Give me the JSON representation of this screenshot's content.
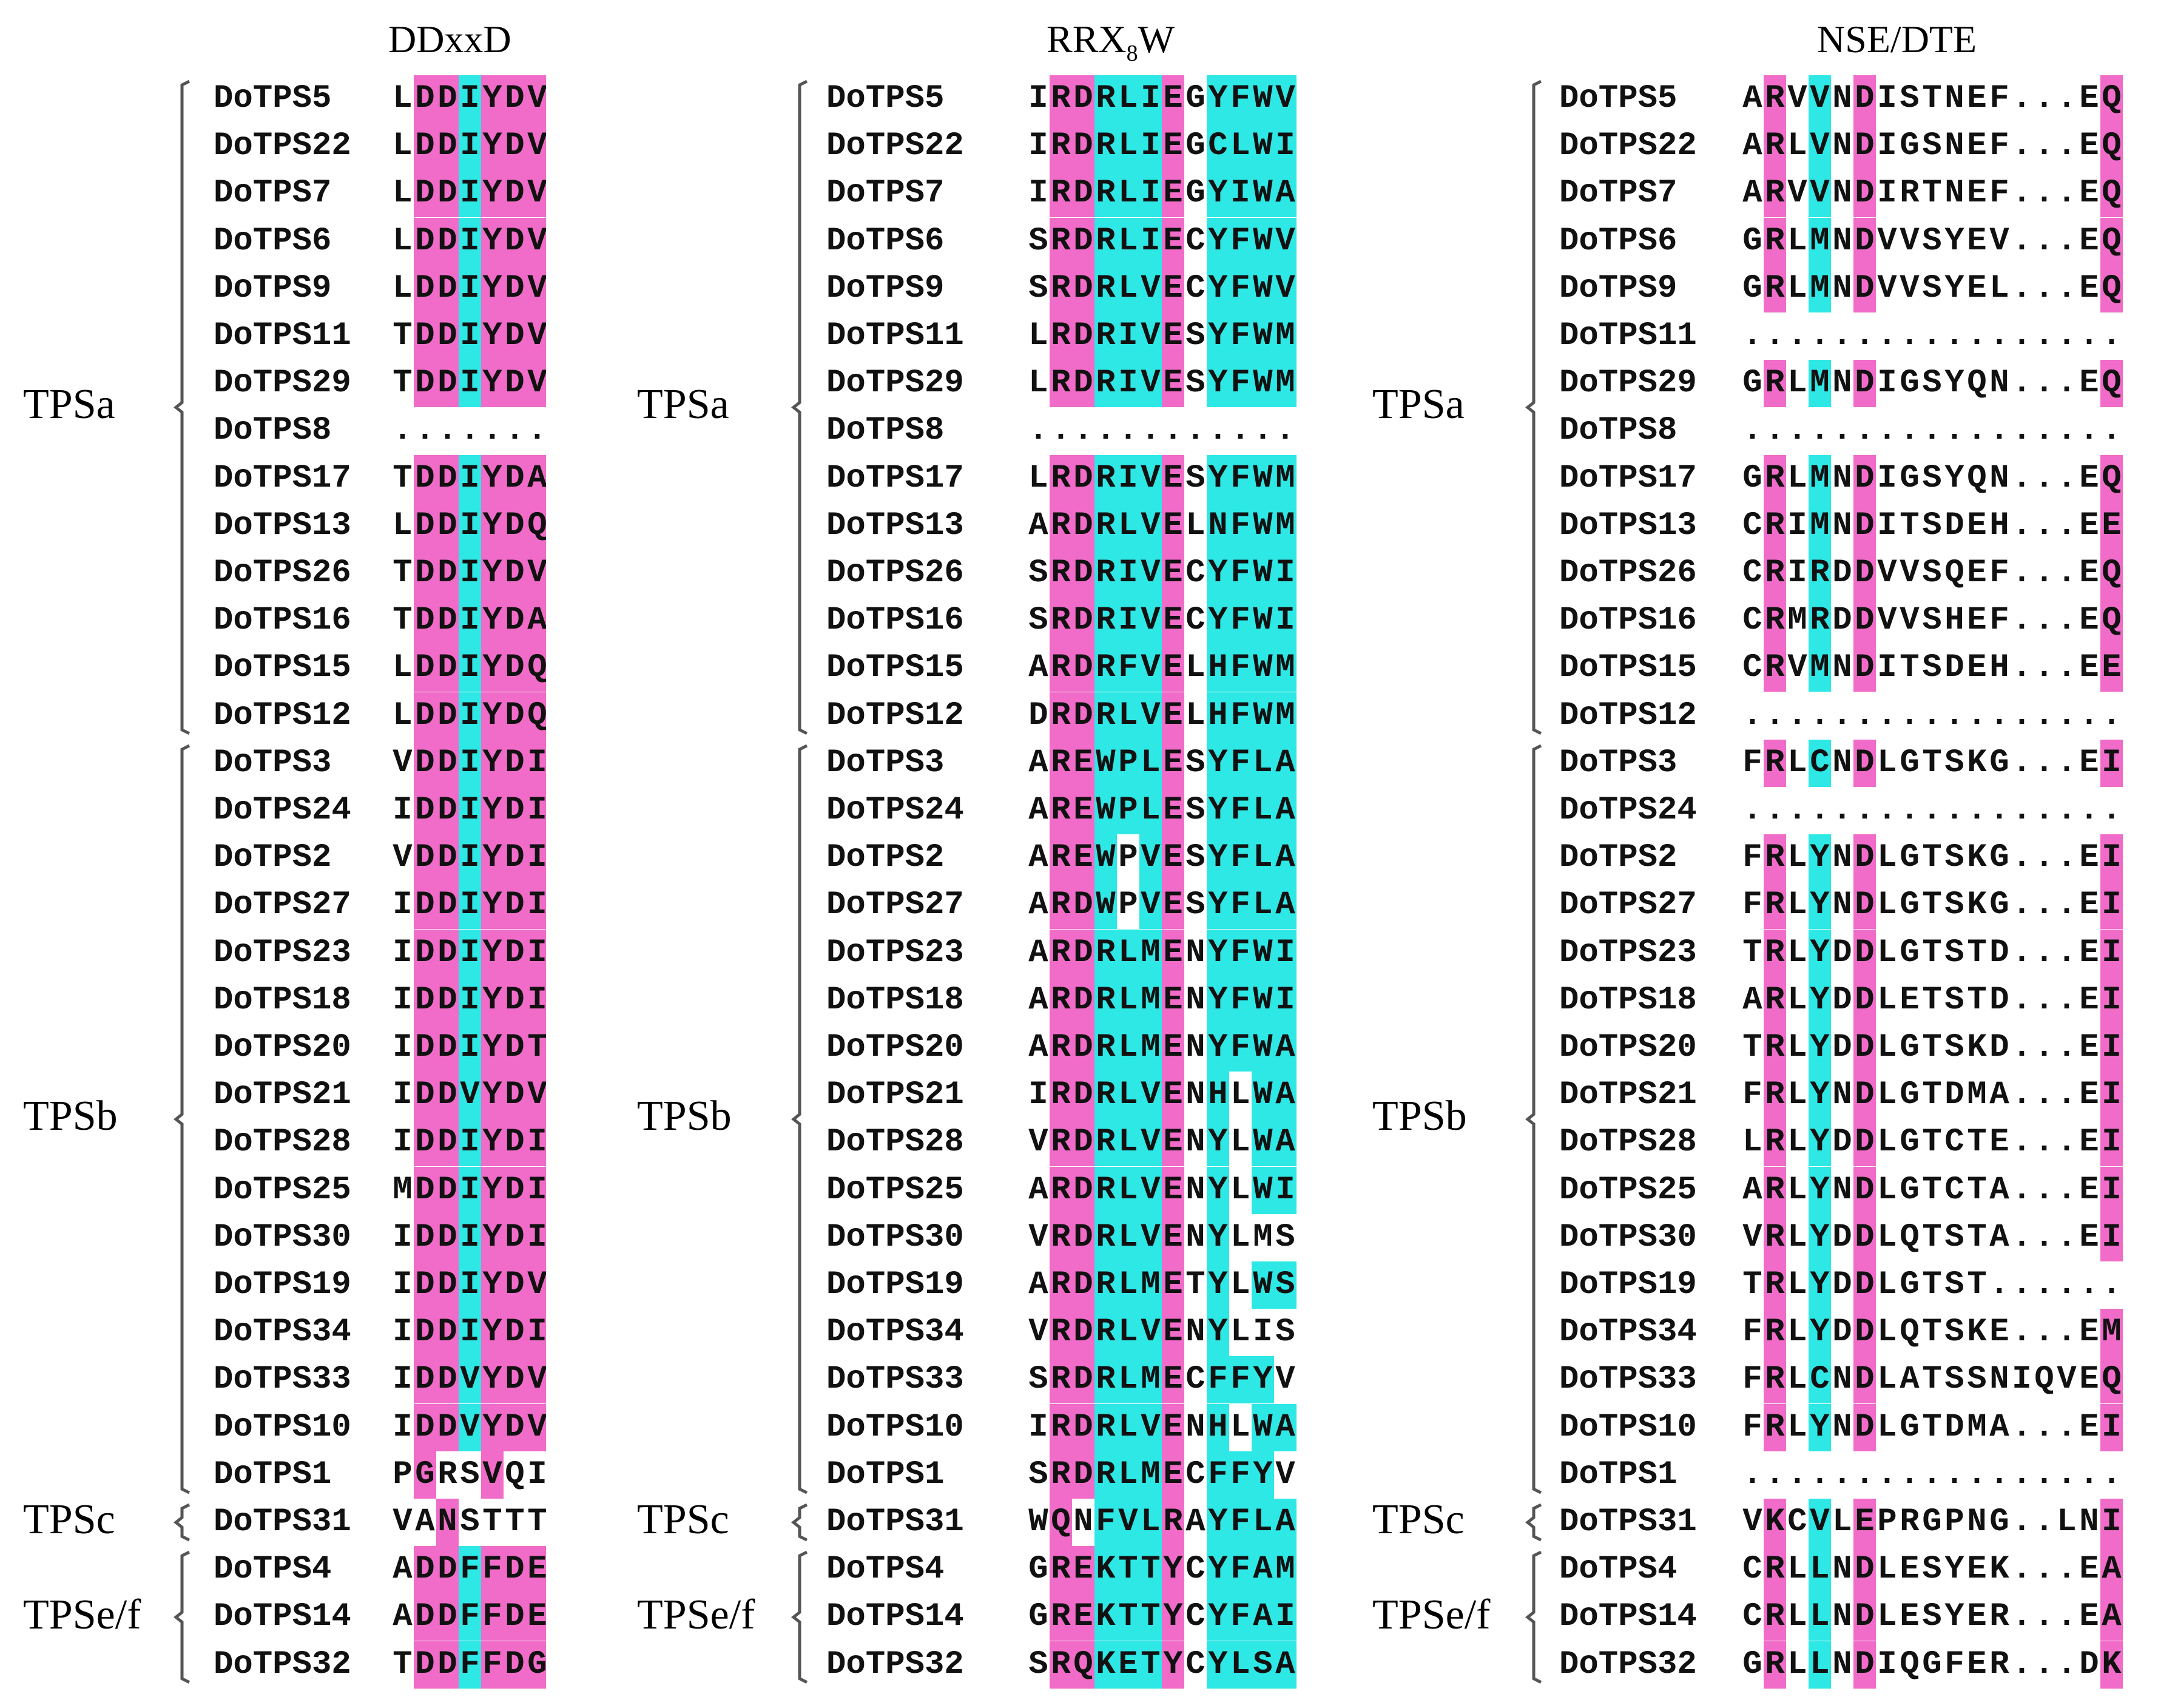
{
  "motifs": [
    {
      "title_main": "DDxxD",
      "title_sub": ""
    },
    {
      "title_main": "RRX",
      "title_sub": "8",
      "title_tail": "W"
    },
    {
      "title_main": "NSE/DTE",
      "title_sub": ""
    }
  ],
  "groups": [
    "TPSa",
    "TPSb",
    "TPSc",
    "TPSe/f"
  ],
  "colors": {
    "conserved_magenta": "#f06cc8",
    "conserved_cyan": "#2ee8e6"
  },
  "alignments": [
    {
      "rows": [
        {
          "name": "DoTPS5",
          "seq": "LDDIYDV",
          "hl": "_mmcmmm"
        },
        {
          "name": "DoTPS22",
          "seq": "LDDIYDV",
          "hl": "_mmcmmm"
        },
        {
          "name": "DoTPS7",
          "seq": "LDDIYDV",
          "hl": "_mmcmmm"
        },
        {
          "name": "DoTPS6",
          "seq": "LDDIYDV",
          "hl": "_mmcmmm"
        },
        {
          "name": "DoTPS9",
          "seq": "LDDIYDV",
          "hl": "_mmcmmm"
        },
        {
          "name": "DoTPS11",
          "seq": "TDDIYDV",
          "hl": "_mmcmmm"
        },
        {
          "name": "DoTPS29",
          "seq": "TDDIYDV",
          "hl": "_mmcmmm"
        },
        {
          "name": "DoTPS8",
          "seq": ".......",
          "hl": "_______"
        },
        {
          "name": "DoTPS17",
          "seq": "TDDIYDA",
          "hl": "_mmcmmm"
        },
        {
          "name": "DoTPS13",
          "seq": "LDDIYDQ",
          "hl": "_mmcmmm"
        },
        {
          "name": "DoTPS26",
          "seq": "TDDIYDV",
          "hl": "_mmcmmm"
        },
        {
          "name": "DoTPS16",
          "seq": "TDDIYDA",
          "hl": "_mmcmmm"
        },
        {
          "name": "DoTPS15",
          "seq": "LDDIYDQ",
          "hl": "_mmcmmm"
        },
        {
          "name": "DoTPS12",
          "seq": "LDDIYDQ",
          "hl": "_mmcmmm"
        },
        {
          "name": "DoTPS3",
          "seq": "VDDIYDI",
          "hl": "_mmcmmm"
        },
        {
          "name": "DoTPS24",
          "seq": "IDDIYDI",
          "hl": "_mmcmmm"
        },
        {
          "name": "DoTPS2",
          "seq": "VDDIYDI",
          "hl": "_mmcmmm"
        },
        {
          "name": "DoTPS27",
          "seq": "IDDIYDI",
          "hl": "_mmcmmm"
        },
        {
          "name": "DoTPS23",
          "seq": "IDDIYDI",
          "hl": "_mmcmmm"
        },
        {
          "name": "DoTPS18",
          "seq": "IDDIYDI",
          "hl": "_mmcmmm"
        },
        {
          "name": "DoTPS20",
          "seq": "IDDIYDT",
          "hl": "_mmcmmm"
        },
        {
          "name": "DoTPS21",
          "seq": "IDDVYDV",
          "hl": "_mmcmmm"
        },
        {
          "name": "DoTPS28",
          "seq": "IDDIYDI",
          "hl": "_mmcmmm"
        },
        {
          "name": "DoTPS25",
          "seq": "MDDIYDI",
          "hl": "_mmcmmm"
        },
        {
          "name": "DoTPS30",
          "seq": "IDDIYDI",
          "hl": "_mmcmmm"
        },
        {
          "name": "DoTPS19",
          "seq": "IDDIYDV",
          "hl": "_mmcmmm"
        },
        {
          "name": "DoTPS34",
          "seq": "IDDIYDI",
          "hl": "_mmcmmm"
        },
        {
          "name": "DoTPS33",
          "seq": "IDDVYDV",
          "hl": "_mmcmmm"
        },
        {
          "name": "DoTPS10",
          "seq": "IDDVYDV",
          "hl": "_mmcmmm"
        },
        {
          "name": "DoTPS1",
          "seq": "PGRSVQI",
          "hl": "_m__m__"
        },
        {
          "name": "DoTPS31",
          "seq": "VANSTTT",
          "hl": "__m____"
        },
        {
          "name": "DoTPS4",
          "seq": "ADDFFDE",
          "hl": "_mmcmmm"
        },
        {
          "name": "DoTPS14",
          "seq": "ADDFFDE",
          "hl": "_mmcmmm"
        },
        {
          "name": "DoTPS32",
          "seq": "TDDFFDG",
          "hl": "_mmcmmm"
        }
      ]
    },
    {
      "rows": [
        {
          "name": "DoTPS5",
          "seq": "IRDRLIEGYFWV",
          "hl": "_mmcccm_cccc"
        },
        {
          "name": "DoTPS22",
          "seq": "IRDRLIEGCLWI",
          "hl": "_mmcccm_cccc"
        },
        {
          "name": "DoTPS7",
          "seq": "IRDRLIEGYIWA",
          "hl": "_mmcccm_cccc"
        },
        {
          "name": "DoTPS6",
          "seq": "SRDRLIECYFWV",
          "hl": "_mmcccm_cccc"
        },
        {
          "name": "DoTPS9",
          "seq": "SRDRLVECYFWV",
          "hl": "_mmcccm_cccc"
        },
        {
          "name": "DoTPS11",
          "seq": "LRDRIVESYFWM",
          "hl": "_mmcccm_cccc"
        },
        {
          "name": "DoTPS29",
          "seq": "LRDRIVESYFWM",
          "hl": "_mmcccm_cccc"
        },
        {
          "name": "DoTPS8",
          "seq": "............",
          "hl": "____________"
        },
        {
          "name": "DoTPS17",
          "seq": "LRDRIVESYFWM",
          "hl": "_mmcccm_cccc"
        },
        {
          "name": "DoTPS13",
          "seq": "ARDRLVELNFWM",
          "hl": "_mmcccm_cccc"
        },
        {
          "name": "DoTPS26",
          "seq": "SRDRIVECYFWI",
          "hl": "_mmcccm_cccc"
        },
        {
          "name": "DoTPS16",
          "seq": "SRDRIVECYFWI",
          "hl": "_mmcccm_cccc"
        },
        {
          "name": "DoTPS15",
          "seq": "ARDRFVELHFWM",
          "hl": "_mmcccm_cccc"
        },
        {
          "name": "DoTPS12",
          "seq": "DRDRLVELHFWM",
          "hl": "_mmcccm_cccc"
        },
        {
          "name": "DoTPS3",
          "seq": "AREWPLESYFLA",
          "hl": "_mmcccm_cccc"
        },
        {
          "name": "DoTPS24",
          "seq": "AREWPLESYFLA",
          "hl": "_mmcccm_cccc"
        },
        {
          "name": "DoTPS2",
          "seq": "AREWPVESYFLA",
          "hl": "_mmc_cm_cccc"
        },
        {
          "name": "DoTPS27",
          "seq": "ARDWPVESYFLA",
          "hl": "_mmc_cm_cccc"
        },
        {
          "name": "DoTPS23",
          "seq": "ARDRLMENYFWI",
          "hl": "_mmcccm_cccc"
        },
        {
          "name": "DoTPS18",
          "seq": "ARDRLMENYFWI",
          "hl": "_mmcccm_cccc"
        },
        {
          "name": "DoTPS20",
          "seq": "ARDRLMENYFWA",
          "hl": "_mmcccm_cccc"
        },
        {
          "name": "DoTPS21",
          "seq": "IRDRLVENHLWA",
          "hl": "_mmcccm_c_cc"
        },
        {
          "name": "DoTPS28",
          "seq": "VRDRLVENYLWA",
          "hl": "_mmcccm_c_cc"
        },
        {
          "name": "DoTPS25",
          "seq": "ARDRLVENYLWI",
          "hl": "_mmcccm_c_cc"
        },
        {
          "name": "DoTPS30",
          "seq": "VRDRLVENYLMS",
          "hl": "_mmcccm_c___"
        },
        {
          "name": "DoTPS19",
          "seq": "ARDRLMETYLWS",
          "hl": "_mmcccm_c_cc"
        },
        {
          "name": "DoTPS34",
          "seq": "VRDRLVENYLIS",
          "hl": "_mmcccm_c___"
        },
        {
          "name": "DoTPS33",
          "seq": "SRDRLMECFFYV",
          "hl": "_mmcccm_ccc_"
        },
        {
          "name": "DoTPS10",
          "seq": "IRDRLVENHLWA",
          "hl": "_mmcccm_c_cc"
        },
        {
          "name": "DoTPS1",
          "seq": "SRDRLMECFFYV",
          "hl": "_mmcccm_ccc_"
        },
        {
          "name": "DoTPS31",
          "seq": "WQNFVLRAYFLA",
          "hl": "_m_cccm_cccc"
        },
        {
          "name": "DoTPS4",
          "seq": "GREKTTYCYFAM",
          "hl": "_mmcccm_cccc"
        },
        {
          "name": "DoTPS14",
          "seq": "GREKTTYCYFAI",
          "hl": "_mmcccm_cccc"
        },
        {
          "name": "DoTPS32",
          "seq": "SRQKETYCYLSA",
          "hl": "_mmcccm_cccc"
        }
      ]
    },
    {
      "rows": [
        {
          "name": "DoTPS5",
          "seq": "ARVVNDISTNEF...EQ",
          "hl": "_m_c_m__________m"
        },
        {
          "name": "DoTPS22",
          "seq": "ARLVNDIGSNEF...EQ",
          "hl": "_m_c_m__________m"
        },
        {
          "name": "DoTPS7",
          "seq": "ARVVNDIRTNEF...EQ",
          "hl": "_m_c_m__________m"
        },
        {
          "name": "DoTPS6",
          "seq": "GRLMNDVVSYEV...EQ",
          "hl": "_m_c_m__________m"
        },
        {
          "name": "DoTPS9",
          "seq": "GRLMNDVVSYEL...EQ",
          "hl": "_m_c_m__________m"
        },
        {
          "name": "DoTPS11",
          "seq": ".................",
          "hl": "_________________"
        },
        {
          "name": "DoTPS29",
          "seq": "GRLMNDIGSYQN...EQ",
          "hl": "_m_c_m__________m"
        },
        {
          "name": "DoTPS8",
          "seq": ".................",
          "hl": "_________________"
        },
        {
          "name": "DoTPS17",
          "seq": "GRLMNDIGSYQN...EQ",
          "hl": "_m_c_m__________m"
        },
        {
          "name": "DoTPS13",
          "seq": "CRIMNDITSDEH...EE",
          "hl": "_m_c_m__________m"
        },
        {
          "name": "DoTPS26",
          "seq": "CRIRDDVVSQEF...EQ",
          "hl": "_m_c_m__________m"
        },
        {
          "name": "DoTPS16",
          "seq": "CRMRDDVVSHEF...EQ",
          "hl": "_m_c_m__________m"
        },
        {
          "name": "DoTPS15",
          "seq": "CRVMNDITSDEH...EE",
          "hl": "_m_c_m__________m"
        },
        {
          "name": "DoTPS12",
          "seq": ".................",
          "hl": "_________________"
        },
        {
          "name": "DoTPS3",
          "seq": "FRLCNDLGTSKG...EI",
          "hl": "_m_c_m__________m"
        },
        {
          "name": "DoTPS24",
          "seq": ".................",
          "hl": "_________________"
        },
        {
          "name": "DoTPS2",
          "seq": "FRLYNDLGTSKG...EI",
          "hl": "_m_c_m__________m"
        },
        {
          "name": "DoTPS27",
          "seq": "FRLYNDLGTSKG...EI",
          "hl": "_m_c_m__________m"
        },
        {
          "name": "DoTPS23",
          "seq": "TRLYDDLGTSTD...EI",
          "hl": "_m_c_m__________m"
        },
        {
          "name": "DoTPS18",
          "seq": "ARLYDDLETSTD...EI",
          "hl": "_m_c_m__________m"
        },
        {
          "name": "DoTPS20",
          "seq": "TRLYDDLGTSKD...EI",
          "hl": "_m_c_m__________m"
        },
        {
          "name": "DoTPS21",
          "seq": "FRLYNDLGTDMA...EI",
          "hl": "_m_c_m__________m"
        },
        {
          "name": "DoTPS28",
          "seq": "LRLYDDLGTCTE...EI",
          "hl": "_m_c_m__________m"
        },
        {
          "name": "DoTPS25",
          "seq": "ARLYNDLGTCTA...EI",
          "hl": "_m_c_m__________m"
        },
        {
          "name": "DoTPS30",
          "seq": "VRLYDDLQTSTA...EI",
          "hl": "_m_c_m__________m"
        },
        {
          "name": "DoTPS19",
          "seq": "TRLYDDLGTST......",
          "hl": "_m_c_m___________"
        },
        {
          "name": "DoTPS34",
          "seq": "FRLYDDLQTSKE...EM",
          "hl": "_m_c_m__________m"
        },
        {
          "name": "DoTPS33",
          "seq": "FRLCNDLATSSNIQVEQ",
          "hl": "_m_c_m__________m"
        },
        {
          "name": "DoTPS10",
          "seq": "FRLYNDLGTDMA...EI",
          "hl": "_m_c_m__________m"
        },
        {
          "name": "DoTPS1",
          "seq": ".................",
          "hl": "_________________"
        },
        {
          "name": "DoTPS31",
          "seq": "VKCVLEPRGPNG..LNI",
          "hl": "_m_c_m__________m"
        },
        {
          "name": "DoTPS4",
          "seq": "CRLLNDLESYEK...EA",
          "hl": "_m_c_m__________m"
        },
        {
          "name": "DoTPS14",
          "seq": "CRLLNDLESYER...EA",
          "hl": "_m_c_m__________m"
        },
        {
          "name": "DoTPS32",
          "seq": "GRLLNDIQGFER...DK",
          "hl": "_m_c_m__________m"
        }
      ]
    }
  ]
}
